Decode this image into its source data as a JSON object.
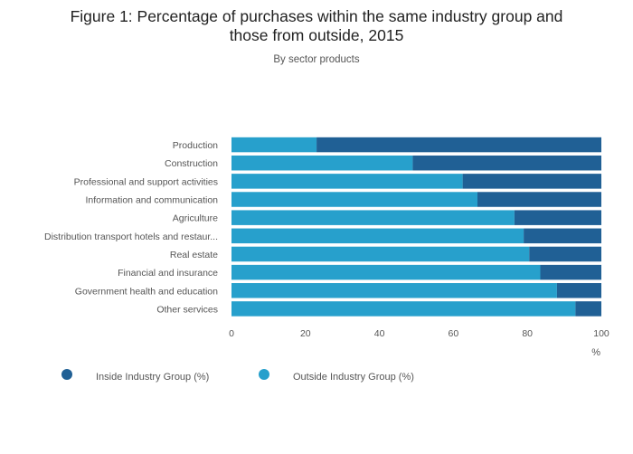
{
  "chart_data": {
    "type": "bar",
    "orientation": "horizontal",
    "stacked": true,
    "title": "Figure 1: Percentage of purchases within the same industry group and those from outside, 2015",
    "title_lines": [
      "Figure 1: Percentage of purchases within the same industry group and",
      "those from outside, 2015"
    ],
    "subtitle": "By sector products",
    "xlabel": "%",
    "ylabel": "",
    "xlim": [
      0,
      100
    ],
    "xticks": [
      "0",
      "20",
      "40",
      "60",
      "80",
      "100"
    ],
    "grid": false,
    "legend_position": "bottom",
    "categories": [
      "Production",
      "Construction",
      "Professional and support activities",
      "Information and communication",
      "Agriculture",
      "Distribution transport hotels and restaur...",
      "Real estate",
      "Financial and insurance",
      "Government health and education",
      "Other services"
    ],
    "series": [
      {
        "name": "Outside Industry Group (%)",
        "color": "#27a0cc",
        "values": [
          23,
          49,
          62.5,
          66.5,
          76.5,
          79,
          80.5,
          83.5,
          88,
          93
        ]
      },
      {
        "name": "Inside Industry Group (%)",
        "color": "#206095",
        "values": [
          77,
          51,
          37.5,
          33.5,
          23.5,
          21,
          19.5,
          16.5,
          12,
          7
        ]
      }
    ],
    "legend": [
      {
        "label": "Inside Industry Group (%)",
        "color": "#206095"
      },
      {
        "label": "Outside Industry Group (%)",
        "color": "#27a0cc"
      }
    ]
  }
}
